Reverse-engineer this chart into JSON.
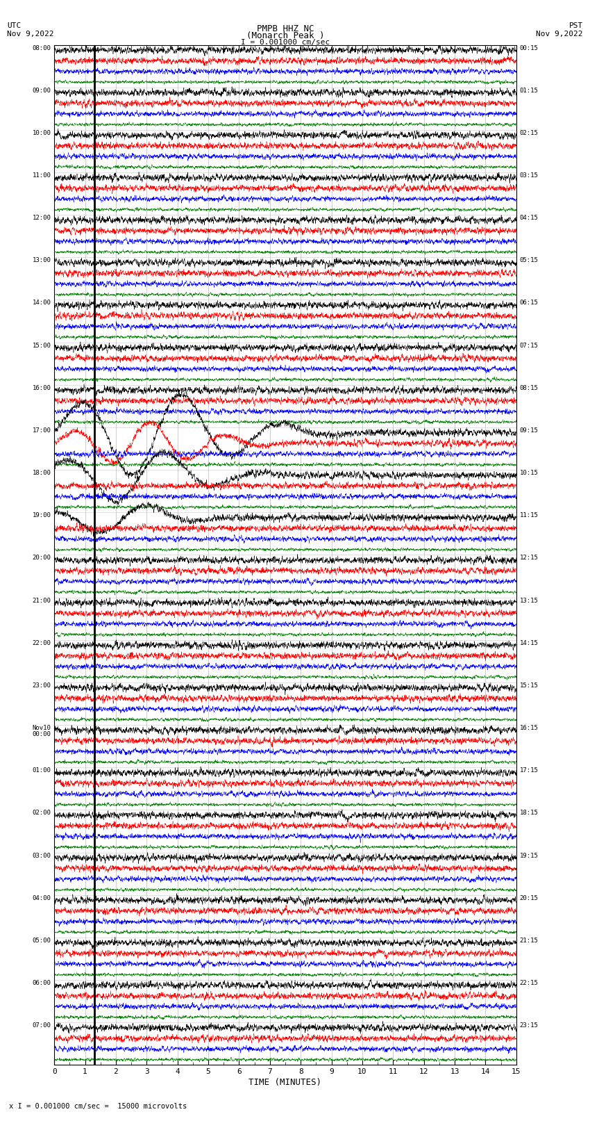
{
  "title_line1": "PMPB HHZ NC",
  "title_line2": "(Monarch Peak )",
  "scale_label": "I = 0.001000 cm/sec",
  "utc_label": "UTC",
  "date_label": "Nov 9,2022",
  "pst_label": "PST",
  "pst_date_label": "Nov 9,2022",
  "xlabel": "TIME (MINUTES)",
  "bottom_note": "x I = 0.001000 cm/sec =  15000 microvolts",
  "left_times": [
    "08:00",
    "09:00",
    "10:00",
    "11:00",
    "12:00",
    "13:00",
    "14:00",
    "15:00",
    "16:00",
    "17:00",
    "18:00",
    "19:00",
    "20:00",
    "21:00",
    "22:00",
    "23:00",
    "Nov10\n00:00",
    "01:00",
    "02:00",
    "03:00",
    "04:00",
    "05:00",
    "06:00",
    "07:00"
  ],
  "right_times": [
    "00:15",
    "01:15",
    "02:15",
    "03:15",
    "04:15",
    "05:15",
    "06:15",
    "07:15",
    "08:15",
    "09:15",
    "10:15",
    "11:15",
    "12:15",
    "13:15",
    "14:15",
    "15:15",
    "16:15",
    "17:15",
    "18:15",
    "19:15",
    "20:15",
    "21:15",
    "22:15",
    "23:15"
  ],
  "num_rows": 24,
  "traces_per_row": 4,
  "trace_colors": [
    "black",
    "red",
    "blue",
    "green"
  ],
  "x_ticks": [
    0,
    1,
    2,
    3,
    4,
    5,
    6,
    7,
    8,
    9,
    10,
    11,
    12,
    13,
    14,
    15
  ],
  "noise_amplitude": [
    0.55,
    0.5,
    0.4,
    0.25
  ],
  "bg_color": "white",
  "grid_color": "#888888",
  "fig_width": 8.5,
  "fig_height": 16.13
}
